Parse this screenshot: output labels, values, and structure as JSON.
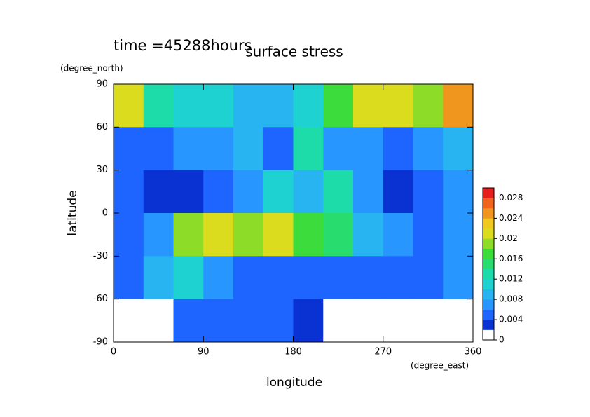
{
  "chart_data": {
    "type": "contour",
    "title": "surface stress",
    "subtitle": "time =45288hours",
    "xlabel": "longitude",
    "xunit": "(degree_east)",
    "ylabel": "latitude",
    "yunit": "(degree_north)",
    "xlim": [
      0,
      360
    ],
    "xticks": [
      0,
      90,
      180,
      270,
      360
    ],
    "ylim": [
      -90,
      90
    ],
    "yticks": [
      -90,
      -60,
      -30,
      0,
      30,
      60,
      90
    ],
    "x": [
      15,
      45,
      75,
      105,
      135,
      165,
      195,
      225,
      255,
      285,
      315,
      345
    ],
    "y": [
      75,
      45,
      15,
      -15,
      -45,
      -75
    ],
    "z": [
      [
        0.02,
        0.012,
        0.01,
        0.01,
        0.008,
        0.008,
        0.01,
        0.016,
        0.02,
        0.02,
        0.018,
        0.024
      ],
      [
        0.004,
        0.004,
        0.006,
        0.006,
        0.008,
        0.004,
        0.012,
        0.006,
        0.006,
        0.004,
        0.006,
        0.008
      ],
      [
        0.004,
        0.002,
        0.002,
        0.004,
        0.006,
        0.01,
        0.008,
        0.012,
        0.006,
        0.002,
        0.004,
        0.006
      ],
      [
        0.004,
        0.006,
        0.018,
        0.02,
        0.018,
        0.02,
        0.016,
        0.014,
        0.008,
        0.006,
        0.004,
        0.006
      ],
      [
        0.004,
        0.008,
        0.01,
        0.006,
        0.004,
        0.004,
        0.004,
        0.004,
        0.004,
        0.004,
        0.004,
        0.006
      ],
      [
        0,
        0,
        0.004,
        0.004,
        0.004,
        0.004,
        0.002,
        0,
        0,
        0,
        0,
        0
      ]
    ],
    "levels": [
      0,
      0.002,
      0.004,
      0.006,
      0.008,
      0.01,
      0.012,
      0.014,
      0.016,
      0.018,
      0.02,
      0.022,
      0.024,
      0.026,
      0.028,
      0.03
    ],
    "colors": [
      "#ffffff",
      "#0a32d2",
      "#1e64ff",
      "#2896ff",
      "#28b4f0",
      "#1ed2d2",
      "#1edcaa",
      "#28dc6e",
      "#3cdc3c",
      "#8cdc28",
      "#dcdc1e",
      "#f0c81e",
      "#f0961e",
      "#f0641e",
      "#e61e1e"
    ],
    "colorbar_lim": [
      0,
      0.03
    ],
    "colorbar_ticks": [
      0,
      0.004,
      0.008,
      0.012,
      0.016,
      0.02,
      0.024,
      0.028
    ]
  }
}
